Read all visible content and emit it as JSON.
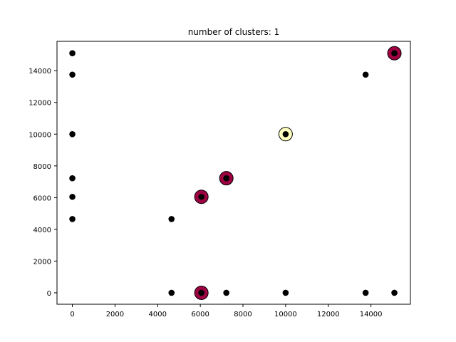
{
  "chart_data": {
    "type": "scatter",
    "title": "number of clusters: 1",
    "xlabel": "",
    "ylabel": "",
    "xlim": [
      -720,
      15850
    ],
    "ylim": [
      -720,
      15850
    ],
    "x_ticks": [
      0,
      2000,
      4000,
      6000,
      8000,
      10000,
      12000,
      14000
    ],
    "y_ticks": [
      0,
      2000,
      4000,
      6000,
      8000,
      10000,
      12000,
      14000
    ],
    "grid": false,
    "legend": "none",
    "large_marker_colors": {
      "dark": "#9e0142",
      "light": "#ffffbf"
    },
    "small_marker_color": "#000000",
    "highlighted_points": [
      {
        "x": 15100,
        "y": 15100,
        "color": "dark"
      },
      {
        "x": 10000,
        "y": 10000,
        "color": "light"
      },
      {
        "x": 7220,
        "y": 7220,
        "color": "dark"
      },
      {
        "x": 6050,
        "y": 6050,
        "color": "dark"
      },
      {
        "x": 6050,
        "y": 0,
        "color": "dark"
      }
    ],
    "points": [
      {
        "x": 0,
        "y": 15100
      },
      {
        "x": 0,
        "y": 13750
      },
      {
        "x": 0,
        "y": 10000
      },
      {
        "x": 0,
        "y": 7220
      },
      {
        "x": 0,
        "y": 6050
      },
      {
        "x": 0,
        "y": 4650
      },
      {
        "x": 4650,
        "y": 4650
      },
      {
        "x": 6050,
        "y": 6050
      },
      {
        "x": 7220,
        "y": 7220
      },
      {
        "x": 10000,
        "y": 10000
      },
      {
        "x": 13750,
        "y": 13750
      },
      {
        "x": 15100,
        "y": 15100
      },
      {
        "x": 4650,
        "y": 0
      },
      {
        "x": 6050,
        "y": 0
      },
      {
        "x": 7220,
        "y": 0
      },
      {
        "x": 10000,
        "y": 0
      },
      {
        "x": 13750,
        "y": 0
      },
      {
        "x": 15100,
        "y": 0
      }
    ]
  }
}
